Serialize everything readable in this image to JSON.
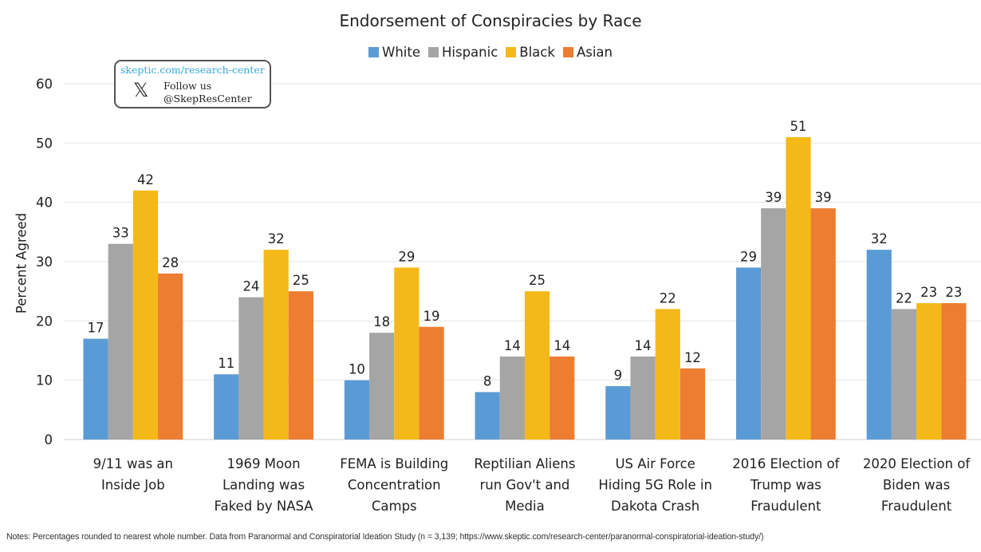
{
  "logo": {
    "url": "skeptic.com/research-center",
    "x_icon": "x-logo-icon",
    "follow": "Follow us",
    "handle": "@SkepResCenter"
  },
  "notes": "Notes: Percentages rounded to nearest whole number. Data from Paranormal and Conspiratorial Ideation Study (n = 3,139; https://www.skeptic.com/research-center/paranormal-conspiratorial-ideation-study/)",
  "chart_data": {
    "type": "bar",
    "title": "Endorsement of Conspiracies by Race",
    "xlabel": "",
    "ylabel": "Percent Agreed",
    "ylim": [
      0,
      60
    ],
    "yticks": [
      "0",
      "10",
      "20",
      "30",
      "40",
      "50",
      "60"
    ],
    "grid": true,
    "legend_position": "top-center",
    "categories": [
      [
        "9/11 was an",
        "Inside Job"
      ],
      [
        "1969 Moon",
        "Landing was",
        "Faked by NASA"
      ],
      [
        "FEMA is Building",
        "Concentration",
        "Camps"
      ],
      [
        "Reptilian Aliens",
        "run Gov't and",
        "Media"
      ],
      [
        "US Air Force",
        "Hiding 5G Role in",
        "Dakota Crash"
      ],
      [
        "2016 Election of",
        "Trump was",
        "Fraudulent"
      ],
      [
        "2020 Election of",
        "Biden was",
        "Fraudulent"
      ]
    ],
    "series": [
      {
        "name": "White",
        "color": "#5b9bd5",
        "values": [
          17,
          11,
          10,
          8,
          9,
          29,
          32
        ]
      },
      {
        "name": "Hispanic",
        "color": "#a5a5a5",
        "values": [
          33,
          24,
          18,
          14,
          14,
          39,
          22
        ]
      },
      {
        "name": "Black",
        "color": "#f4b919",
        "values": [
          42,
          32,
          29,
          25,
          22,
          51,
          23
        ]
      },
      {
        "name": "Asian",
        "color": "#ed7d31",
        "values": [
          28,
          25,
          19,
          14,
          12,
          39,
          23
        ]
      }
    ]
  }
}
